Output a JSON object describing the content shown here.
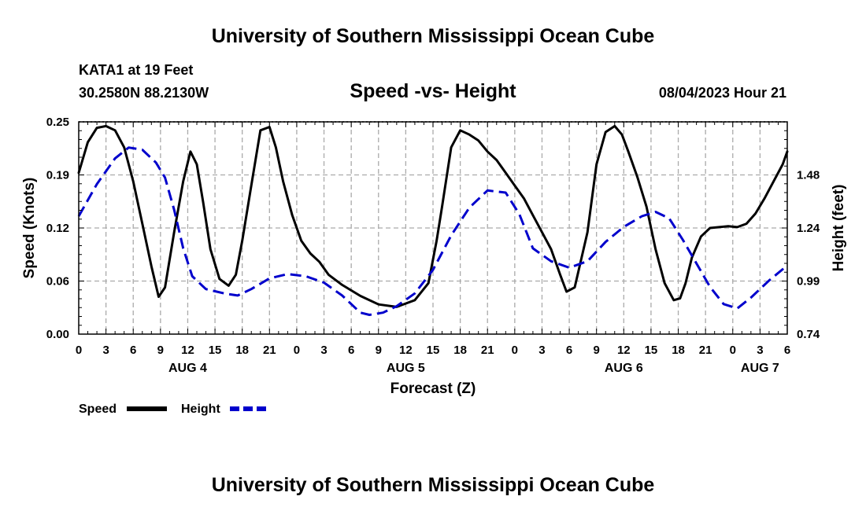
{
  "header": {
    "title": "University of Southern Mississippi Ocean Cube",
    "station": "KATA1 at 19 Feet",
    "coords": "30.2580N  88.2130W",
    "timestamp": "08/04/2023 Hour 21"
  },
  "footer": {
    "title": "University of Southern Mississippi Ocean Cube"
  },
  "chart_data": {
    "type": "line",
    "title": "Speed -vs- Height",
    "xlabel": "Forecast (Z)",
    "ylabel": "Speed (Knots)",
    "y2label": "Height (feet)",
    "xlim": [
      0,
      78
    ],
    "ylim": [
      0,
      0.25
    ],
    "y2lim": [
      0.74,
      1.73
    ],
    "x_ticks": [
      0,
      3,
      6,
      9,
      12,
      15,
      18,
      21,
      24,
      27,
      30,
      33,
      36,
      39,
      42,
      45,
      48,
      51,
      54,
      57,
      60,
      63,
      66,
      69,
      72,
      75,
      78
    ],
    "x_tick_labels": [
      "0",
      "3",
      "6",
      "9",
      "12",
      "15",
      "18",
      "21",
      "0",
      "3",
      "6",
      "9",
      "12",
      "15",
      "18",
      "21",
      "0",
      "3",
      "6",
      "9",
      "12",
      "15",
      "18",
      "21",
      "0",
      "3",
      "6"
    ],
    "y_ticks": [
      0.0,
      0.06,
      0.12,
      0.19,
      0.25
    ],
    "y_tick_labels": [
      "0.00",
      "0.06",
      "0.12",
      "0.19",
      "0.25"
    ],
    "y2_tick_labels": [
      "0.74",
      "0.99",
      "1.24",
      "1.48"
    ],
    "day_labels": [
      {
        "x": 12,
        "label": "AUG 4"
      },
      {
        "x": 36,
        "label": "AUG 5"
      },
      {
        "x": 60,
        "label": "AUG 6"
      },
      {
        "x": 75,
        "label": "AUG 7"
      }
    ],
    "grid": true,
    "legend_position": "bottom-left",
    "series": [
      {
        "name": "Speed",
        "axis": "left",
        "color": "#000000",
        "dash": "solid",
        "x": [
          0,
          1,
          2,
          3,
          4,
          5,
          6,
          7,
          8,
          8.8,
          9.5,
          10.5,
          11.5,
          12.3,
          13,
          13.7,
          14.5,
          15.5,
          16.5,
          17.3,
          18,
          19,
          20,
          21,
          21.7,
          22.5,
          23.5,
          24.5,
          25.5,
          26.5,
          27.5,
          29,
          31,
          33,
          35,
          37,
          38.5,
          39.4,
          40,
          41,
          42,
          43,
          44,
          45,
          46,
          47,
          48,
          49,
          50,
          51,
          52,
          53,
          53.7,
          54.6,
          56,
          57,
          58,
          59,
          59.8,
          60.5,
          61.5,
          62.5,
          63.5,
          64.5,
          65.5,
          66.2,
          66.8,
          67.5,
          68.5,
          69.5,
          70.5,
          71.5,
          72.5,
          73.5,
          74.5,
          75.5,
          76.5,
          77.5,
          78
        ],
        "values": [
          0.19,
          0.226,
          0.243,
          0.245,
          0.24,
          0.22,
          0.18,
          0.13,
          0.08,
          0.044,
          0.055,
          0.12,
          0.18,
          0.215,
          0.2,
          0.155,
          0.1,
          0.065,
          0.057,
          0.07,
          0.11,
          0.175,
          0.24,
          0.244,
          0.22,
          0.18,
          0.14,
          0.11,
          0.095,
          0.085,
          0.07,
          0.058,
          0.045,
          0.035,
          0.032,
          0.04,
          0.06,
          0.11,
          0.15,
          0.22,
          0.24,
          0.235,
          0.228,
          0.215,
          0.205,
          0.19,
          0.175,
          0.16,
          0.14,
          0.12,
          0.1,
          0.07,
          0.05,
          0.055,
          0.12,
          0.2,
          0.238,
          0.245,
          0.235,
          0.215,
          0.185,
          0.15,
          0.1,
          0.06,
          0.04,
          0.042,
          0.06,
          0.09,
          0.115,
          0.125,
          0.126,
          0.127,
          0.126,
          0.13,
          0.142,
          0.16,
          0.18,
          0.2,
          0.215
        ]
      },
      {
        "name": "Height",
        "axis": "right",
        "color": "#0000cc",
        "dash": "dashed",
        "x": [
          0,
          2,
          4,
          5.5,
          7,
          8.5,
          9.5,
          10.5,
          11.5,
          12.5,
          14,
          16,
          17.5,
          19,
          21,
          23,
          25,
          27,
          29,
          31,
          32,
          33.5,
          35,
          37,
          39,
          41,
          43,
          45,
          47,
          48.5,
          50,
          52,
          54,
          56,
          58,
          60,
          62,
          63.5,
          65,
          66.5,
          68,
          69.5,
          71,
          72.5,
          74,
          76,
          78
        ],
        "values": [
          1.29,
          1.44,
          1.56,
          1.61,
          1.6,
          1.54,
          1.47,
          1.32,
          1.14,
          1.01,
          0.95,
          0.93,
          0.92,
          0.95,
          1.0,
          1.02,
          1.01,
          0.98,
          0.92,
          0.84,
          0.83,
          0.84,
          0.87,
          0.93,
          1.04,
          1.2,
          1.33,
          1.41,
          1.4,
          1.3,
          1.14,
          1.08,
          1.05,
          1.08,
          1.17,
          1.24,
          1.29,
          1.31,
          1.28,
          1.18,
          1.07,
          0.96,
          0.88,
          0.86,
          0.91,
          0.99,
          1.06
        ]
      }
    ]
  }
}
